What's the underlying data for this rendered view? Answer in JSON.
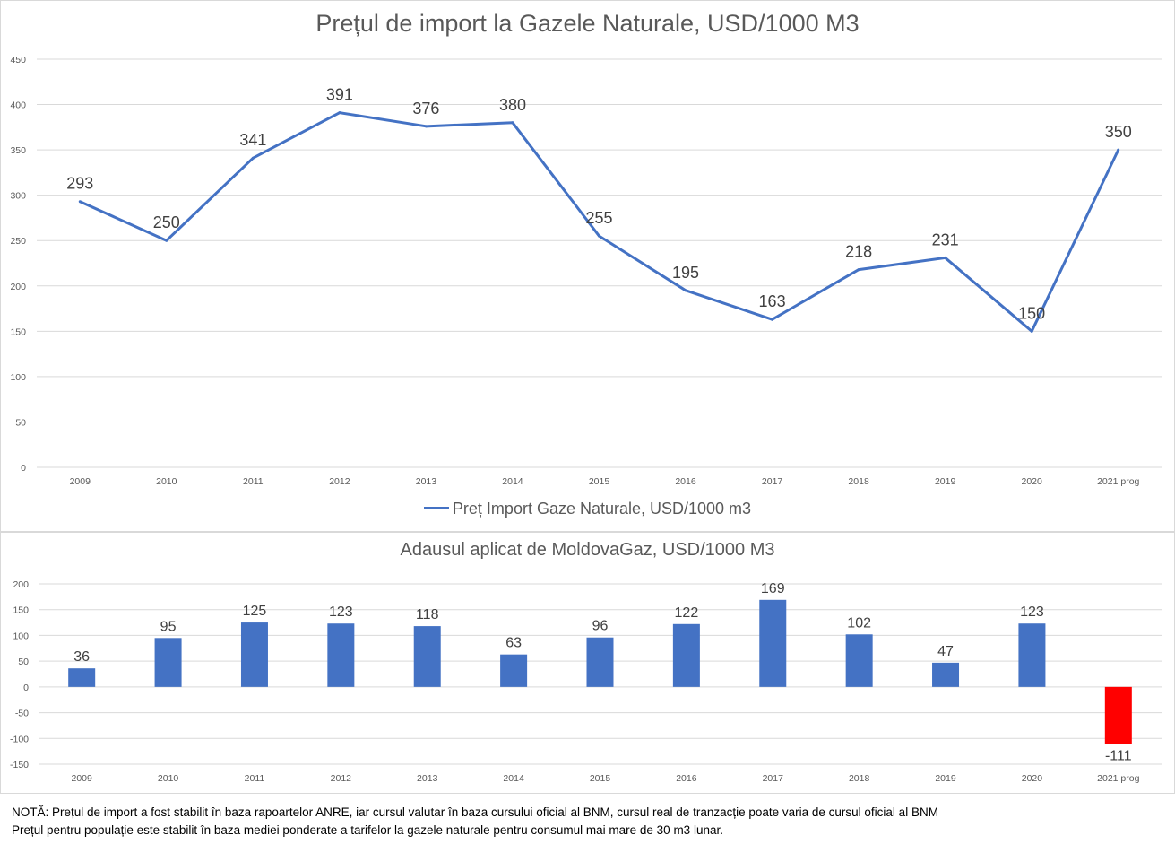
{
  "chart_data": [
    {
      "type": "line",
      "title": "Prețul de import la Gazele Naturale, USD/1000 M3",
      "categories": [
        "2009",
        "2010",
        "2011",
        "2012",
        "2013",
        "2014",
        "2015",
        "2016",
        "2017",
        "2018",
        "2019",
        "2020",
        "2021 prog"
      ],
      "series": [
        {
          "name": "Preț Import Gaze Naturale, USD/1000 m3",
          "values": [
            293,
            250,
            341,
            391,
            376,
            380,
            255,
            195,
            163,
            218,
            231,
            150,
            350
          ],
          "color": "#4472C4"
        }
      ],
      "ylim": [
        0,
        450
      ],
      "yticks": [
        0,
        50,
        100,
        150,
        200,
        250,
        300,
        350,
        400,
        450
      ],
      "grid": true,
      "legend": "bottom",
      "xlabel": "",
      "ylabel": ""
    },
    {
      "type": "bar",
      "title": "Adausul aplicat de MoldovaGaz, USD/1000 M3",
      "categories": [
        "2009",
        "2010",
        "2011",
        "2012",
        "2013",
        "2014",
        "2015",
        "2016",
        "2017",
        "2018",
        "2019",
        "2020",
        "2021 prog"
      ],
      "values": [
        36,
        95,
        125,
        123,
        118,
        63,
        96,
        122,
        169,
        102,
        47,
        123,
        -111
      ],
      "colors": {
        "positive": "#4472C4",
        "negative": "#FF0000"
      },
      "ylim": [
        -150,
        200
      ],
      "yticks": [
        -150,
        -100,
        -50,
        0,
        50,
        100,
        150,
        200
      ],
      "grid": true,
      "xlabel": "",
      "ylabel": ""
    }
  ],
  "note": {
    "line1": "NOTĂ: Prețul de import  a fost stabilit în baza rapoartelor ANRE, iar cursul valutar în baza cursului oficial al BNM, cursul real de tranzacție poate varia de cursul oficial al BNM",
    "line2": "Prețul pentru populație este stabilit în baza mediei ponderate a tarifelor la gazele naturale pentru consumul mai mare de 30 m3 lunar."
  }
}
